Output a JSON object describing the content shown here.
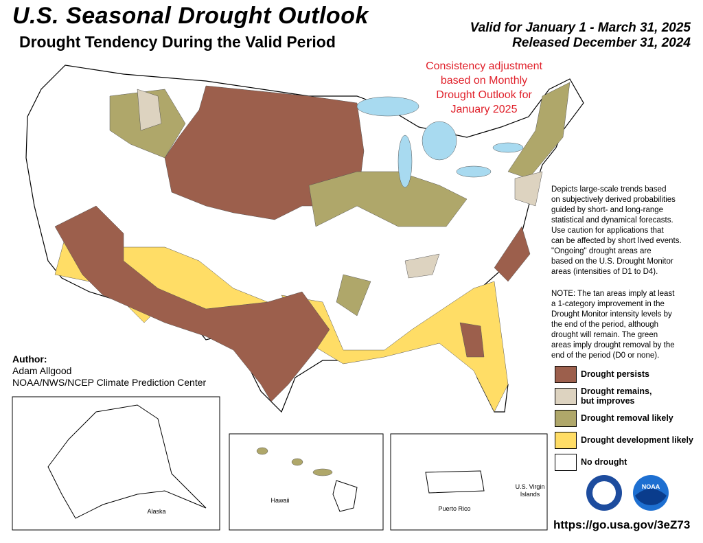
{
  "header": {
    "title": "U.S. Seasonal Drought Outlook",
    "subtitle": "Drought Tendency During the Valid Period",
    "valid": "Valid for January 1 - March 31, 2025",
    "released": "Released December 31, 2024"
  },
  "adjustment_note": [
    "Consistency adjustment",
    "based on Monthly",
    "Drought Outlook for",
    "January 2025"
  ],
  "description": [
    "Depicts large-scale trends based",
    "on subjectively derived probabilities",
    "guided by short- and long-range",
    "statistical and dynamical forecasts.",
    "Use caution for applications that",
    "can be affected by short lived events.",
    "\"Ongoing\" drought areas are",
    "based on the U.S. Drought Monitor",
    "areas (intensities of D1 to D4)."
  ],
  "note": [
    "NOTE: The tan areas imply at least",
    "a 1-category improvement in the",
    "Drought Monitor intensity levels by",
    "the end of the period, although",
    "drought will remain. The green",
    "areas imply drought removal by the",
    "end of the period (D0 or none)."
  ],
  "legend": {
    "items": [
      {
        "label_lines": [
          "Drought persists"
        ],
        "color": "#9c5f4c"
      },
      {
        "label_lines": [
          "Drought remains,",
          "but improves"
        ],
        "color": "#ddd3c0"
      },
      {
        "label_lines": [
          "Drought removal likely"
        ],
        "color": "#afa76a"
      },
      {
        "label_lines": [
          "Drought development likely"
        ],
        "color": "#ffdd66"
      },
      {
        "label_lines": [
          "No drought"
        ],
        "color": "#ffffff"
      }
    ]
  },
  "author": {
    "heading": "Author:",
    "name": "Adam Allgood",
    "org": "NOAA/NWS/NCEP Climate Prediction Center"
  },
  "insets": {
    "alaska": "Alaska",
    "hawaii": "Hawaii",
    "puerto_rico": "Puerto Rico",
    "virgin_islands": [
      "U.S. Virgin",
      "Islands"
    ]
  },
  "logo_text": "NOAA",
  "url": "https://go.usa.gov/3eZ73"
}
